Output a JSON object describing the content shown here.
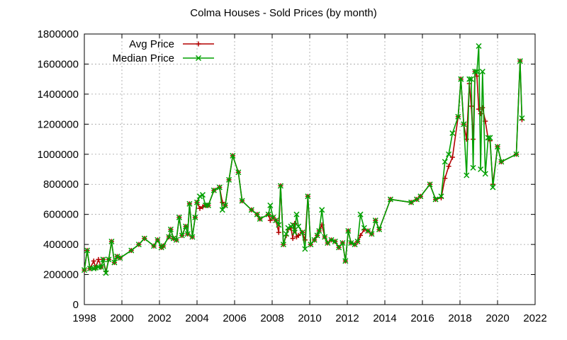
{
  "chart_data": {
    "type": "line",
    "title": "Colma Houses - Sold Prices (by month)",
    "xlabel": "",
    "ylabel": "",
    "xlim": [
      1998,
      2022
    ],
    "ylim": [
      0,
      1800000
    ],
    "x_ticks": [
      "1998",
      "2000",
      "2002",
      "2004",
      "2006",
      "2008",
      "2010",
      "2012",
      "2014",
      "2016",
      "2018",
      "2020",
      "2022"
    ],
    "y_ticks": [
      "0",
      "200000",
      "400000",
      "600000",
      "800000",
      "1000000",
      "1200000",
      "1400000",
      "1600000",
      "1800000"
    ],
    "grid": true,
    "legend_position": "top-left",
    "series": [
      {
        "name": "Avg Price",
        "color": "#b30000",
        "marker": "plus",
        "x": [
          1998.0,
          1998.15,
          1998.3,
          1998.5,
          1998.6,
          1998.75,
          1998.9,
          1999.0,
          1999.15,
          1999.3,
          1999.45,
          1999.6,
          1999.75,
          1999.9,
          2000.5,
          2000.9,
          2001.2,
          2001.7,
          2001.9,
          2002.1,
          2002.2,
          2002.5,
          2002.6,
          2002.75,
          2002.9,
          2003.05,
          2003.2,
          2003.4,
          2003.5,
          2003.6,
          2003.75,
          2003.9,
          2004.0,
          2004.15,
          2004.3,
          2004.45,
          2004.6,
          2004.9,
          2005.2,
          2005.35,
          2005.5,
          2005.7,
          2005.9,
          2006.2,
          2006.4,
          2006.9,
          2007.2,
          2007.35,
          2007.8,
          2007.9,
          2008.05,
          2008.2,
          2008.35,
          2008.45,
          2008.6,
          2008.75,
          2008.85,
          2009.0,
          2009.1,
          2009.2,
          2009.3,
          2009.4,
          2009.6,
          2009.75,
          2009.9,
          2010.05,
          2010.25,
          2010.4,
          2010.5,
          2010.65,
          2010.8,
          2010.95,
          2011.15,
          2011.35,
          2011.55,
          2011.75,
          2011.9,
          2012.05,
          2012.2,
          2012.4,
          2012.55,
          2012.7,
          2012.9,
          2013.1,
          2013.3,
          2013.5,
          2013.7,
          2014.3,
          2015.4,
          2015.7,
          2015.9,
          2016.4,
          2016.7,
          2017.0,
          2017.2,
          2017.4,
          2017.6,
          2017.9,
          2018.05,
          2018.2,
          2018.35,
          2018.5,
          2018.6,
          2018.7,
          2018.8,
          2018.9,
          2019.0,
          2019.1,
          2019.2,
          2019.35,
          2019.5,
          2019.6,
          2019.75,
          2020.0,
          2020.2,
          2021.0,
          2021.2,
          2021.3
        ],
        "values": [
          230000,
          360000,
          240000,
          290000,
          245000,
          300000,
          250000,
          300000,
          220000,
          300000,
          420000,
          280000,
          320000,
          310000,
          360000,
          400000,
          440000,
          390000,
          430000,
          380000,
          390000,
          450000,
          500000,
          440000,
          430000,
          580000,
          460000,
          520000,
          470000,
          670000,
          450000,
          580000,
          680000,
          640000,
          650000,
          660000,
          660000,
          760000,
          780000,
          680000,
          660000,
          830000,
          990000,
          880000,
          690000,
          630000,
          600000,
          570000,
          600000,
          560000,
          580000,
          560000,
          480000,
          790000,
          400000,
          460000,
          500000,
          510000,
          440000,
          540000,
          450000,
          460000,
          480000,
          430000,
          720000,
          400000,
          430000,
          460000,
          490000,
          530000,
          450000,
          410000,
          430000,
          420000,
          380000,
          410000,
          290000,
          490000,
          410000,
          400000,
          420000,
          460000,
          500000,
          490000,
          470000,
          560000,
          500000,
          700000,
          680000,
          700000,
          720000,
          800000,
          700000,
          710000,
          840000,
          920000,
          980000,
          1250000,
          1500000,
          1200000,
          1100000,
          1470000,
          1320000,
          1100000,
          1550000,
          1520000,
          1300000,
          1270000,
          1310000,
          1220000,
          1100000,
          1090000,
          800000,
          1050000,
          950000,
          1000000,
          1620000,
          1230000
        ]
      },
      {
        "name": "Median Price",
        "color": "#00a000",
        "marker": "cross",
        "x": [
          1998.0,
          1998.15,
          1998.3,
          1998.5,
          1998.6,
          1998.75,
          1998.9,
          1999.0,
          1999.15,
          1999.3,
          1999.45,
          1999.6,
          1999.75,
          1999.9,
          2000.5,
          2000.9,
          2001.2,
          2001.7,
          2001.9,
          2002.1,
          2002.2,
          2002.5,
          2002.6,
          2002.75,
          2002.9,
          2003.05,
          2003.2,
          2003.4,
          2003.5,
          2003.6,
          2003.75,
          2003.9,
          2004.0,
          2004.15,
          2004.3,
          2004.45,
          2004.6,
          2004.9,
          2005.2,
          2005.35,
          2005.5,
          2005.7,
          2005.9,
          2006.2,
          2006.4,
          2006.9,
          2007.2,
          2007.35,
          2007.8,
          2007.9,
          2008.05,
          2008.2,
          2008.35,
          2008.45,
          2008.6,
          2008.75,
          2008.85,
          2009.0,
          2009.1,
          2009.2,
          2009.3,
          2009.4,
          2009.6,
          2009.75,
          2009.9,
          2010.05,
          2010.25,
          2010.4,
          2010.5,
          2010.65,
          2010.8,
          2010.95,
          2011.15,
          2011.35,
          2011.55,
          2011.75,
          2011.9,
          2012.05,
          2012.2,
          2012.4,
          2012.55,
          2012.7,
          2012.9,
          2013.1,
          2013.3,
          2013.5,
          2013.7,
          2014.3,
          2015.4,
          2015.7,
          2015.9,
          2016.4,
          2016.7,
          2017.0,
          2017.2,
          2017.4,
          2017.6,
          2017.9,
          2018.05,
          2018.2,
          2018.35,
          2018.5,
          2018.6,
          2018.7,
          2018.8,
          2018.9,
          2019.0,
          2019.1,
          2019.2,
          2019.35,
          2019.5,
          2019.6,
          2019.75,
          2020.0,
          2020.2,
          2021.0,
          2021.2,
          2021.3
        ],
        "values": [
          230000,
          360000,
          240000,
          240000,
          245000,
          250000,
          250000,
          300000,
          210000,
          300000,
          420000,
          280000,
          320000,
          310000,
          360000,
          400000,
          440000,
          390000,
          430000,
          380000,
          390000,
          450000,
          500000,
          440000,
          430000,
          580000,
          460000,
          520000,
          470000,
          670000,
          450000,
          580000,
          680000,
          720000,
          730000,
          660000,
          660000,
          760000,
          780000,
          630000,
          660000,
          830000,
          990000,
          880000,
          690000,
          630000,
          600000,
          570000,
          600000,
          660000,
          580000,
          560000,
          530000,
          790000,
          400000,
          470000,
          510000,
          520000,
          530000,
          480000,
          600000,
          520000,
          480000,
          370000,
          720000,
          400000,
          430000,
          460000,
          490000,
          630000,
          450000,
          410000,
          430000,
          420000,
          380000,
          410000,
          290000,
          490000,
          410000,
          400000,
          420000,
          600000,
          510000,
          490000,
          470000,
          560000,
          500000,
          700000,
          680000,
          700000,
          720000,
          800000,
          700000,
          720000,
          950000,
          1000000,
          1140000,
          1250000,
          1500000,
          1200000,
          860000,
          1500000,
          1500000,
          910000,
          1550000,
          1550000,
          1720000,
          900000,
          1550000,
          870000,
          1110000,
          1110000,
          780000,
          1050000,
          950000,
          1000000,
          1620000,
          1240000
        ]
      }
    ]
  }
}
